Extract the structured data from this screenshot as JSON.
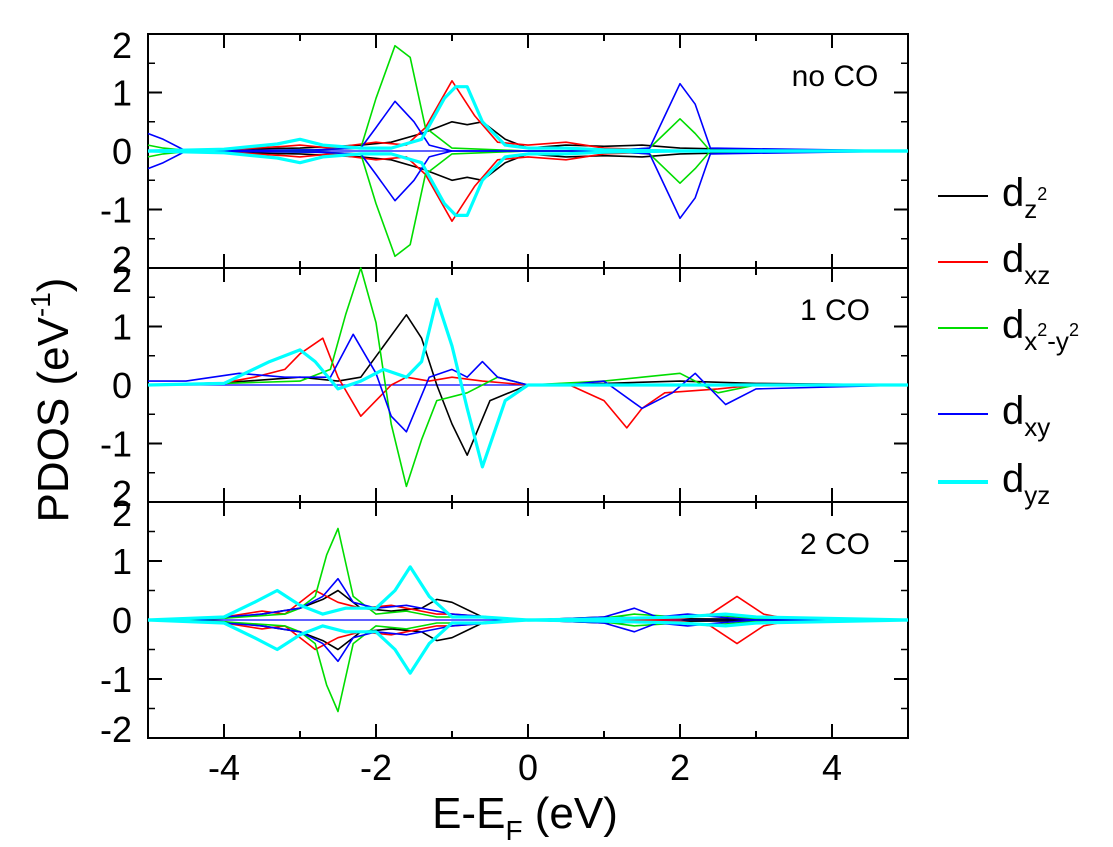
{
  "chart_data": {
    "type": "line",
    "xlabel": "E-E_F (eV)",
    "ylabel": "PDOS (eV^-1)",
    "xlim": [
      -5,
      5
    ],
    "x_ticks": [
      "-4",
      "-2",
      "0",
      "2",
      "4"
    ],
    "legend_position": "right",
    "legend": [
      {
        "key": "dz2",
        "color": "#000000"
      },
      {
        "key": "dxz",
        "color": "#ff0000"
      },
      {
        "key": "dx2y2",
        "color": "#00dd00"
      },
      {
        "key": "dxy",
        "color": "#0000ff"
      },
      {
        "key": "dyz",
        "color": "#00ffff"
      }
    ],
    "text": {
      "xlabel_main": "E-E",
      "xlabel_sub": "F",
      "xlabel_tail": " (eV)",
      "ylabel_main": "PDOS (eV",
      "ylabel_sup": "-1",
      "ylabel_tail": ")",
      "leg_d": "d",
      "leg_z": "z",
      "leg_2": "2",
      "leg_xz": "xz",
      "leg_x": "x",
      "leg_minus_y": "-y",
      "leg_xy": "xy",
      "leg_yz": "yz"
    },
    "panels": [
      {
        "label": "no CO",
        "ylim": [
          -2,
          2
        ],
        "y_ticks": [
          "2",
          "1",
          "0",
          "-1",
          "2"
        ],
        "mirrored": true,
        "series": [
          {
            "key": "dz2",
            "x": [
              -5,
              -4,
              -3,
              -2.2,
              -1.8,
              -1.4,
              -1.0,
              -0.8,
              -0.6,
              -0.3,
              0,
              0.5,
              1,
              1.5,
              2,
              3,
              5
            ],
            "y": [
              0,
              0.03,
              0.05,
              0.1,
              0.15,
              0.3,
              0.5,
              0.45,
              0.5,
              0.2,
              0.05,
              0.1,
              0.08,
              0.1,
              0.05,
              0.02,
              0
            ]
          },
          {
            "key": "dxz",
            "x": [
              -5,
              -4,
              -3.2,
              -3,
              -2.6,
              -2,
              -1.6,
              -1.35,
              -1.0,
              -0.7,
              -0.4,
              0,
              0.5,
              1,
              2,
              5
            ],
            "y": [
              0,
              0.02,
              0.08,
              0.1,
              0.05,
              0.15,
              0.1,
              0.4,
              1.2,
              0.6,
              0.15,
              0.1,
              0.15,
              0.05,
              0,
              0
            ]
          },
          {
            "key": "dx2y2",
            "x": [
              -5,
              -4.8,
              -4.4,
              -2.8,
              -2.2,
              -2.0,
              -1.75,
              -1.55,
              -1.35,
              -1.0,
              0,
              1,
              1.6,
              1.8,
              2.0,
              2.2,
              2.4,
              5
            ],
            "y": [
              0.1,
              0.05,
              0,
              0.02,
              0.05,
              0.9,
              1.8,
              1.6,
              0.4,
              0.05,
              0,
              0,
              0.05,
              0.3,
              0.55,
              0.3,
              0,
              0
            ]
          },
          {
            "key": "dxy",
            "x": [
              -5,
              -4.8,
              -4.5,
              -2.8,
              -2.2,
              -2.0,
              -1.75,
              -1.5,
              -1.3,
              -1.0,
              0,
              1,
              1.6,
              1.8,
              2.0,
              2.2,
              2.4,
              5
            ],
            "y": [
              0.3,
              0.2,
              0,
              0.02,
              0.05,
              0.4,
              0.85,
              0.5,
              0.1,
              0,
              0,
              0,
              0.05,
              0.6,
              1.15,
              0.8,
              0.05,
              0
            ]
          },
          {
            "key": "dyz",
            "x": [
              -5,
              -4,
              -3.3,
              -3.0,
              -2.7,
              -2.2,
              -1.8,
              -1.4,
              -1.1,
              -0.95,
              -0.8,
              -0.6,
              -0.3,
              0,
              0.5,
              1,
              2,
              5
            ],
            "y": [
              0,
              0.03,
              0.12,
              0.2,
              0.1,
              0.05,
              0.05,
              0.2,
              0.9,
              1.1,
              1.1,
              0.5,
              0.1,
              0.05,
              0.05,
              0.02,
              0,
              0
            ]
          }
        ]
      },
      {
        "label": "1 CO",
        "ylim": [
          -1.5,
          1.5
        ],
        "y_ticks": [
          "2",
          "1",
          "0",
          "-1",
          "2"
        ],
        "mirrored": false,
        "series": [
          {
            "key": "dz2",
            "x": [
              -5,
              -4,
              -3,
              -2.5,
              -2.2,
              -1.9,
              -1.6,
              -1.4,
              -1.2,
              -1.0,
              -0.8,
              -0.5,
              0,
              1,
              2,
              3,
              5
            ],
            "y": [
              0,
              0.03,
              0.1,
              0.05,
              0.1,
              0.5,
              0.9,
              0.6,
              0,
              -0.5,
              -0.9,
              -0.2,
              0,
              0.02,
              0.05,
              0.02,
              0
            ]
          },
          {
            "key": "dxz",
            "x": [
              -5,
              -4,
              -3.6,
              -3.2,
              -3.0,
              -2.7,
              -2.5,
              -2.2,
              -2.0,
              -1.8,
              -1.6,
              -1.3,
              -1.0,
              -0.6,
              0,
              0.5,
              1.0,
              1.3,
              1.5,
              1.8,
              2.5,
              3,
              5
            ],
            "y": [
              0,
              0.03,
              0.1,
              0.2,
              0.4,
              0.6,
              0.1,
              -0.4,
              -0.2,
              0,
              0.1,
              0.05,
              0.1,
              0.05,
              0,
              0.02,
              -0.2,
              -0.55,
              -0.3,
              -0.1,
              -0.05,
              0,
              0
            ]
          },
          {
            "key": "dx2y2",
            "x": [
              -5,
              -4,
              -3,
              -2.6,
              -2.4,
              -2.2,
              -2.0,
              -1.8,
              -1.6,
              -1.4,
              -1.2,
              -0.8,
              -0.4,
              0,
              1,
              1.5,
              2,
              2.5,
              3,
              5
            ],
            "y": [
              0,
              0.02,
              0.05,
              0.2,
              0.9,
              1.5,
              0.8,
              -0.5,
              -1.3,
              -0.7,
              -0.2,
              -0.1,
              0.1,
              0,
              0.05,
              0.1,
              0.15,
              -0.1,
              0,
              0
            ]
          },
          {
            "key": "dxy",
            "x": [
              -5,
              -4.5,
              -3.8,
              -3.2,
              -2.6,
              -2.3,
              -2.0,
              -1.8,
              -1.6,
              -1.3,
              -1.0,
              -0.8,
              -0.6,
              -0.4,
              0,
              0.5,
              1.0,
              1.5,
              1.9,
              2.2,
              2.6,
              3,
              5
            ],
            "y": [
              0.05,
              0.05,
              0.15,
              0.1,
              0.1,
              0.65,
              0.15,
              -0.4,
              -0.6,
              0.1,
              0.2,
              0.1,
              0.3,
              0.1,
              0,
              0,
              0.05,
              -0.3,
              -0.1,
              0.15,
              -0.25,
              -0.05,
              0
            ]
          },
          {
            "key": "dyz",
            "x": [
              -5,
              -4,
              -3.4,
              -3.0,
              -2.8,
              -2.5,
              -2.2,
              -1.9,
              -1.6,
              -1.4,
              -1.2,
              -1.0,
              -0.8,
              -0.6,
              -0.3,
              0,
              1,
              2,
              5
            ],
            "y": [
              0,
              0.02,
              0.3,
              0.45,
              0.3,
              -0.05,
              0.05,
              0.2,
              0.1,
              0.3,
              1.1,
              0.5,
              -0.3,
              -1.05,
              -0.2,
              0,
              0,
              0,
              0
            ]
          }
        ]
      },
      {
        "label": "2 CO",
        "ylim": [
          -2,
          2
        ],
        "y_ticks": [
          "2",
          "1",
          "0",
          "-1",
          "-2"
        ],
        "mirrored": true,
        "series": [
          {
            "key": "dz2",
            "x": [
              -5,
              -4,
              -3.5,
              -3,
              -2.7,
              -2.5,
              -2.2,
              -1.8,
              -1.4,
              -1.2,
              -1.0,
              -0.6,
              0,
              1,
              2,
              5
            ],
            "y": [
              0,
              0.03,
              0.1,
              0.2,
              0.35,
              0.5,
              0.2,
              0.15,
              0.2,
              0.35,
              0.3,
              0.05,
              0,
              0.05,
              0.02,
              0
            ]
          },
          {
            "key": "dxz",
            "x": [
              -5,
              -4,
              -3.5,
              -3.2,
              -2.8,
              -2.5,
              -2.2,
              -1.8,
              -1.6,
              -1.2,
              -1.0,
              -0.5,
              0,
              1,
              2,
              2.4,
              2.75,
              3.1,
              3.5,
              5
            ],
            "y": [
              0,
              0.05,
              0.15,
              0.1,
              0.5,
              0.3,
              0.2,
              0.25,
              0.2,
              0.1,
              0.1,
              0.05,
              0,
              0,
              0.02,
              0.1,
              0.4,
              0.1,
              0,
              0
            ]
          },
          {
            "key": "dx2y2",
            "x": [
              -5,
              -4,
              -3.2,
              -3.0,
              -2.8,
              -2.65,
              -2.5,
              -2.3,
              -2.0,
              -1.6,
              -1.2,
              -0.8,
              0,
              1,
              1.4,
              2,
              2.5,
              3,
              5
            ],
            "y": [
              0,
              0.03,
              0.1,
              0.2,
              0.4,
              1.1,
              1.55,
              0.4,
              0.1,
              0.15,
              0.05,
              0.05,
              0,
              0.03,
              0.1,
              0.05,
              0.08,
              0.02,
              0
            ]
          },
          {
            "key": "dxy",
            "x": [
              -5,
              -4,
              -3.5,
              -3.0,
              -2.7,
              -2.5,
              -2.3,
              -2.0,
              -1.6,
              -1.2,
              -1.0,
              -0.5,
              0,
              1,
              1.4,
              1.7,
              2.1,
              2.5,
              3,
              5
            ],
            "y": [
              0,
              0.05,
              0.1,
              0.2,
              0.4,
              0.7,
              0.3,
              0.2,
              0.25,
              0.15,
              0.1,
              0.05,
              0,
              0.05,
              0.2,
              0.05,
              0.1,
              0.05,
              0,
              0
            ]
          },
          {
            "key": "dyz",
            "x": [
              -5,
              -4,
              -3.6,
              -3.3,
              -3.0,
              -2.7,
              -2.4,
              -2.0,
              -1.75,
              -1.55,
              -1.3,
              -1.0,
              -0.6,
              0,
              1,
              2,
              2.6,
              3,
              5
            ],
            "y": [
              0,
              0.05,
              0.3,
              0.5,
              0.25,
              0.1,
              0.2,
              0.2,
              0.5,
              0.9,
              0.4,
              0.05,
              0.05,
              0,
              0.02,
              0.05,
              0.1,
              0.05,
              0
            ]
          }
        ]
      }
    ]
  }
}
